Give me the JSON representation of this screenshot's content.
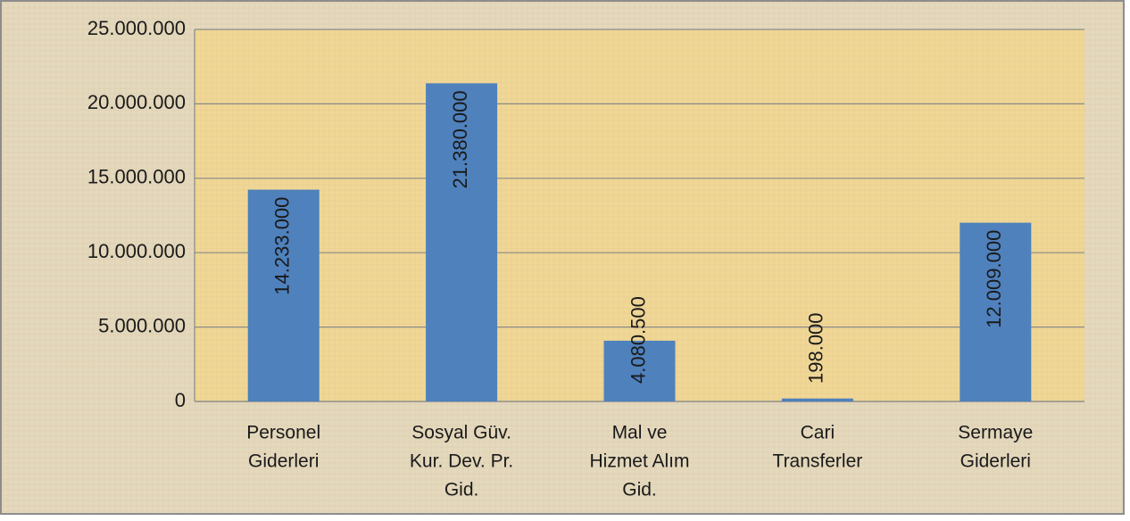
{
  "chart_data": {
    "type": "bar",
    "categories": [
      [
        "Personel",
        "Giderleri"
      ],
      [
        "Sosyal Güv.",
        "Kur. Dev. Pr.",
        "Gid."
      ],
      [
        "Mal ve",
        "Hizmet Alım",
        "Gid."
      ],
      [
        "Cari",
        "Transferler"
      ],
      [
        "Sermaye",
        "Giderleri"
      ]
    ],
    "values": [
      14233000,
      21380000,
      4080500,
      198000,
      12009000
    ],
    "value_labels": [
      "14.233.000",
      "21.380.000",
      "4.080.500",
      "198.000",
      "12.009.000"
    ],
    "color": "#4f81bd",
    "ylim": [
      0,
      25000000
    ],
    "yticks": [
      0,
      {
        "value": 5000000,
        "label": "5.000.000"
      },
      {
        "value": 10000000,
        "label": "10.000.000"
      },
      {
        "value": 15000000,
        "label": "15.000.000"
      },
      {
        "value": 20000000,
        "label": "20.000.000"
      },
      {
        "value": 25000000,
        "label": "25.000.000"
      }
    ],
    "grid": true
  }
}
